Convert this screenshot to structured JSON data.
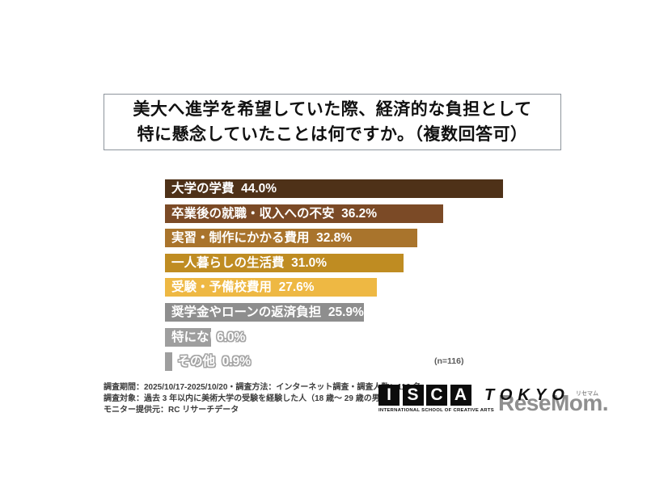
{
  "title": {
    "line1": "美大へ進学を希望していた際、経済的な負担として",
    "line2": "特に懸念していたことは何ですか。（複数回答可）"
  },
  "annotation": {
    "sample_size": "(n=116)"
  },
  "footnote": {
    "line1": "調査期間：2025/10/17-2025/10/20・調査方法：インターネット調査・調査人数：116 名",
    "line2": "調査対象：過去 3 年以内に美術大学の受験を経験した人（18 歳〜 29 歳の男女）",
    "line3": "モニター提供元：RC リサーチデータ"
  },
  "logo_isca": {
    "letters": [
      "I",
      "S",
      "C",
      "A"
    ],
    "tagline": "INTERNATIONAL SCHOOL OF CREATIVE ARTS",
    "city": "TOKYO"
  },
  "logo_resemom": {
    "text": "ReseMom.",
    "ruby": "リセマム"
  },
  "chart_data": {
    "type": "bar",
    "orientation": "horizontal",
    "title": "美大へ進学を希望していた際、経済的な負担として特に懸念していたことは何ですか。（複数回答可）",
    "sample_size": 116,
    "unit": "%",
    "xlim": [
      0,
      47
    ],
    "grid": false,
    "legend": "none",
    "categories": [
      "大学の学費",
      "卒業後の就職・収入への不安",
      "実習・制作にかかる費用",
      "一人暮らしの生活費",
      "受験・予備校費用",
      "奨学金やローンの返済負担",
      "特にない",
      "その他"
    ],
    "values": [
      44.0,
      36.2,
      32.8,
      31.0,
      27.6,
      25.9,
      6.0,
      0.9
    ],
    "bars": [
      {
        "label": "大学の学費",
        "value": "44.0%",
        "pct": 44.0,
        "color": "#4e3118",
        "placement": "inside"
      },
      {
        "label": "卒業後の就職・収入への不安",
        "value": "36.2%",
        "pct": 36.2,
        "color": "#7b4a26",
        "placement": "inside"
      },
      {
        "label": "実習・制作にかかる費用",
        "value": "32.8%",
        "pct": 32.8,
        "color": "#a9742c",
        "placement": "inside"
      },
      {
        "label": "一人暮らしの生活費",
        "value": "31.0%",
        "pct": 31.0,
        "color": "#bf8c22",
        "placement": "inside"
      },
      {
        "label": "受験・予備校費用",
        "value": "27.6%",
        "pct": 27.6,
        "color": "#eeb843",
        "placement": "inside"
      },
      {
        "label": "奨学金やローンの返済負担",
        "value": "25.9%",
        "pct": 25.9,
        "color": "#8e8e8e",
        "placement": "inside"
      },
      {
        "label": "特にない",
        "value": "6.0%",
        "pct": 6.0,
        "color": "#9e9e9e",
        "placement": "split"
      },
      {
        "label": "その他",
        "value": "0.9%",
        "pct": 0.9,
        "color": "#9e9e9e",
        "placement": "outside"
      }
    ]
  }
}
